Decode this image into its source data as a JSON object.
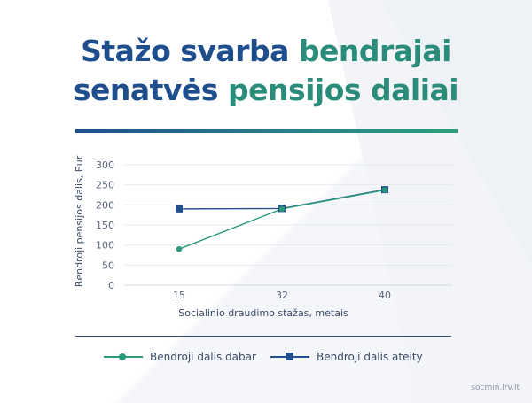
{
  "title": {
    "line1_part1": "Stažo svarba ",
    "line1_part2": "bendrajai",
    "line2_part1": "senatvės ",
    "line2_part2": "pensijos daliai"
  },
  "colors": {
    "title_blue": "#1f4e8c",
    "title_green": "#2a8c7a",
    "series_now": "#2a9a7c",
    "series_future": "#234f8f"
  },
  "chart_data": {
    "type": "line",
    "x": [
      "15",
      "32",
      "40"
    ],
    "xlabel": "Socialinio draudimo stažas, metais",
    "ylabel": "Bendroji pensijos dalis, Eur",
    "ylim": [
      0,
      300
    ],
    "yticks": [
      0,
      50,
      100,
      150,
      200,
      250,
      300
    ],
    "grid": true,
    "series": [
      {
        "name": "Bendroji dalis dabar",
        "marker": "circle",
        "values": [
          90,
          190,
          237
        ]
      },
      {
        "name": "Bendroji dalis ateity",
        "marker": "square",
        "values": [
          190,
          191,
          238
        ]
      }
    ],
    "legend_position": "bottom"
  },
  "legend": {
    "now_label": "Bendroji dalis dabar",
    "future_label": "Bendroji dalis ateity"
  },
  "footer": {
    "site": "socmin.lrv.lt"
  }
}
